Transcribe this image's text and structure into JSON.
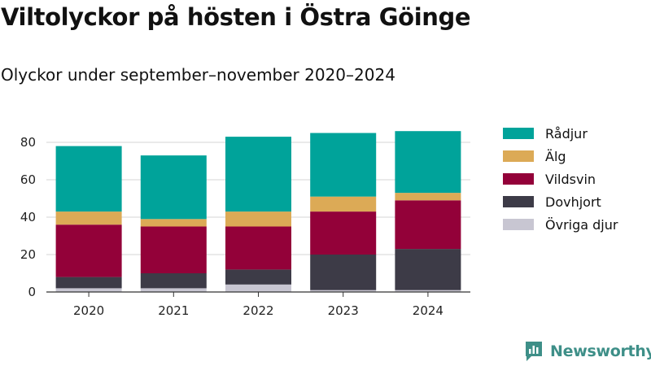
{
  "chart_data": {
    "type": "bar",
    "stacked": true,
    "title": "Viltolyckor på hösten i Östra Göinge",
    "subtitle": "Olyckor under september–november 2020–2024",
    "categories": [
      "2020",
      "2021",
      "2022",
      "2023",
      "2024"
    ],
    "series": [
      {
        "name": "Övriga djur",
        "color": "#c8c6d2",
        "values": [
          2,
          2,
          4,
          1,
          1
        ]
      },
      {
        "name": "Dovhjort",
        "color": "#3d3b47",
        "values": [
          6,
          8,
          8,
          19,
          22
        ]
      },
      {
        "name": "Vildsvin",
        "color": "#930139",
        "values": [
          28,
          25,
          23,
          23,
          26
        ]
      },
      {
        "name": "Älg",
        "color": "#dcaa56",
        "values": [
          7,
          4,
          8,
          8,
          4
        ]
      },
      {
        "name": "Rådjur",
        "color": "#00a39a",
        "values": [
          35,
          34,
          40,
          34,
          33
        ]
      }
    ],
    "legend_order": [
      "Rådjur",
      "Älg",
      "Vildsvin",
      "Dovhjort",
      "Övriga djur"
    ],
    "legend_position": "right",
    "ylim": [
      0,
      90
    ],
    "yticks": [
      0,
      20,
      40,
      60,
      80
    ],
    "grid": true,
    "xlabel": "",
    "ylabel": ""
  },
  "branding": {
    "name": "Newsworthy",
    "icon": "newsworthy-logo-icon",
    "color": "#3e8f88"
  }
}
